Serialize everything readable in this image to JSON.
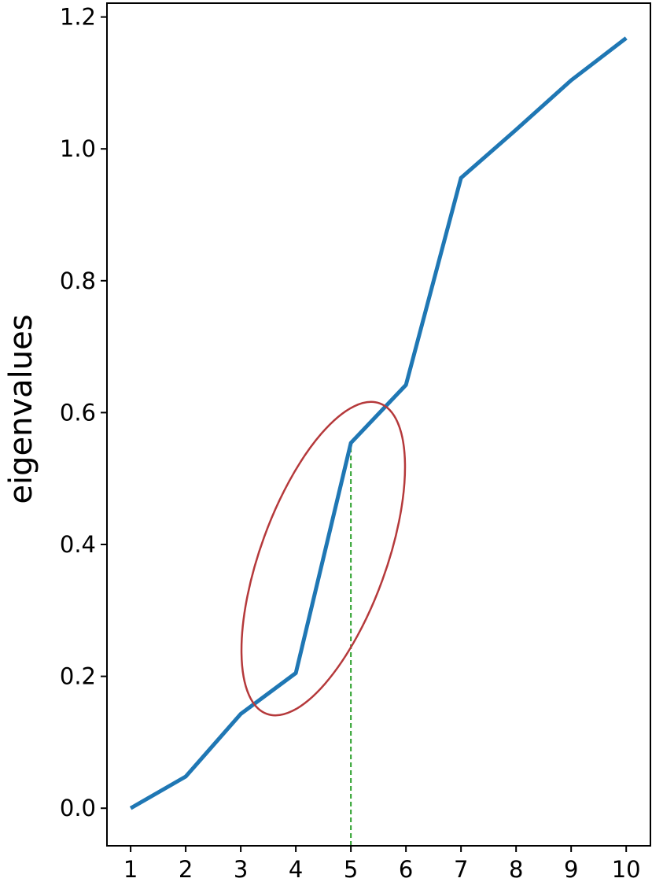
{
  "chart_data": {
    "type": "line",
    "ylabel": "eigenvalues",
    "x": [
      1,
      2,
      3,
      4,
      5,
      6,
      7,
      8,
      9,
      10
    ],
    "series": [
      {
        "color": "#1f77b4",
        "values": [
          0.0,
          0.048,
          0.143,
          0.205,
          0.554,
          0.642,
          0.956,
          1.029,
          1.104,
          1.168
        ]
      }
    ],
    "vline_x": 5,
    "vline_color": "#2ca02c",
    "xlim": [
      0.57,
      10.44
    ],
    "ylim": [
      -0.057,
      1.221
    ],
    "xticks": [
      1,
      2,
      3,
      4,
      5,
      6,
      7,
      8,
      9,
      10
    ],
    "yticks": [
      {
        "value": 0,
        "label": "0.0"
      },
      0.2,
      0.4,
      0.6,
      0.8,
      {
        "value": 1,
        "label": "1.0"
      },
      1.2
    ]
  }
}
